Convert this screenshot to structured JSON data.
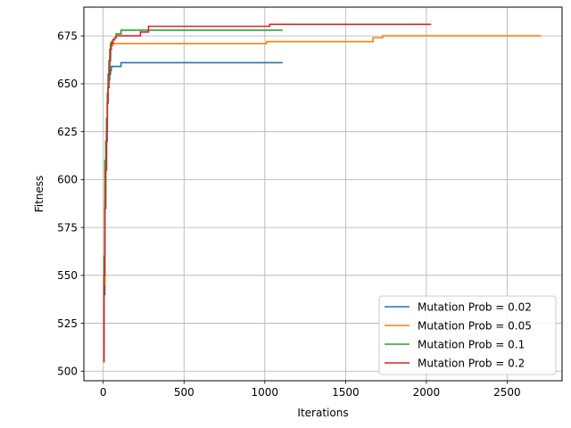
{
  "chart_data": {
    "type": "line",
    "title": "",
    "xlabel": "Iterations",
    "ylabel": "Fitness",
    "xlim": [
      -120,
      2840
    ],
    "ylim": [
      495,
      690
    ],
    "xticks": [
      0,
      500,
      1000,
      1500,
      2000,
      2500
    ],
    "yticks": [
      500,
      525,
      550,
      575,
      600,
      625,
      650,
      675
    ],
    "grid": true,
    "legend_position": "lower-right",
    "series": [
      {
        "name": "Mutation Prob = 0.02",
        "color": "#1f77b4",
        "x": [
          0,
          5,
          10,
          15,
          20,
          25,
          30,
          35,
          40,
          45,
          50,
          60,
          100,
          110,
          1110
        ],
        "y": [
          505,
          540,
          585,
          605,
          620,
          640,
          648,
          652,
          655,
          657,
          659,
          659,
          659,
          661,
          661
        ]
      },
      {
        "name": "Mutation Prob = 0.05",
        "color": "#ff7f0e",
        "x": [
          0,
          5,
          10,
          15,
          20,
          25,
          30,
          35,
          40,
          45,
          50,
          60,
          1000,
          1010,
          1660,
          1670,
          1720,
          1730,
          2710
        ],
        "y": [
          505,
          545,
          590,
          610,
          625,
          640,
          650,
          658,
          664,
          668,
          670,
          671,
          671,
          672,
          672,
          674,
          674,
          675,
          675
        ]
      },
      {
        "name": "Mutation Prob = 0.1",
        "color": "#2ca02c",
        "x": [
          0,
          5,
          10,
          15,
          20,
          25,
          30,
          35,
          40,
          45,
          50,
          60,
          70,
          80,
          100,
          110,
          260,
          270,
          1110
        ],
        "y": [
          505,
          560,
          610,
          620,
          632,
          645,
          655,
          662,
          668,
          671,
          672,
          673,
          674,
          676,
          676,
          678,
          678,
          678,
          678
        ]
      },
      {
        "name": "Mutation Prob = 0.2",
        "color": "#d62728",
        "x": [
          0,
          5,
          10,
          15,
          20,
          25,
          30,
          35,
          40,
          45,
          50,
          60,
          70,
          80,
          90,
          220,
          230,
          270,
          280,
          1020,
          1030,
          2030
        ],
        "y": [
          505,
          550,
          585,
          605,
          625,
          640,
          648,
          655,
          662,
          668,
          671,
          673,
          674,
          675,
          675,
          675,
          677,
          677,
          680,
          680,
          681,
          681
        ]
      }
    ]
  }
}
